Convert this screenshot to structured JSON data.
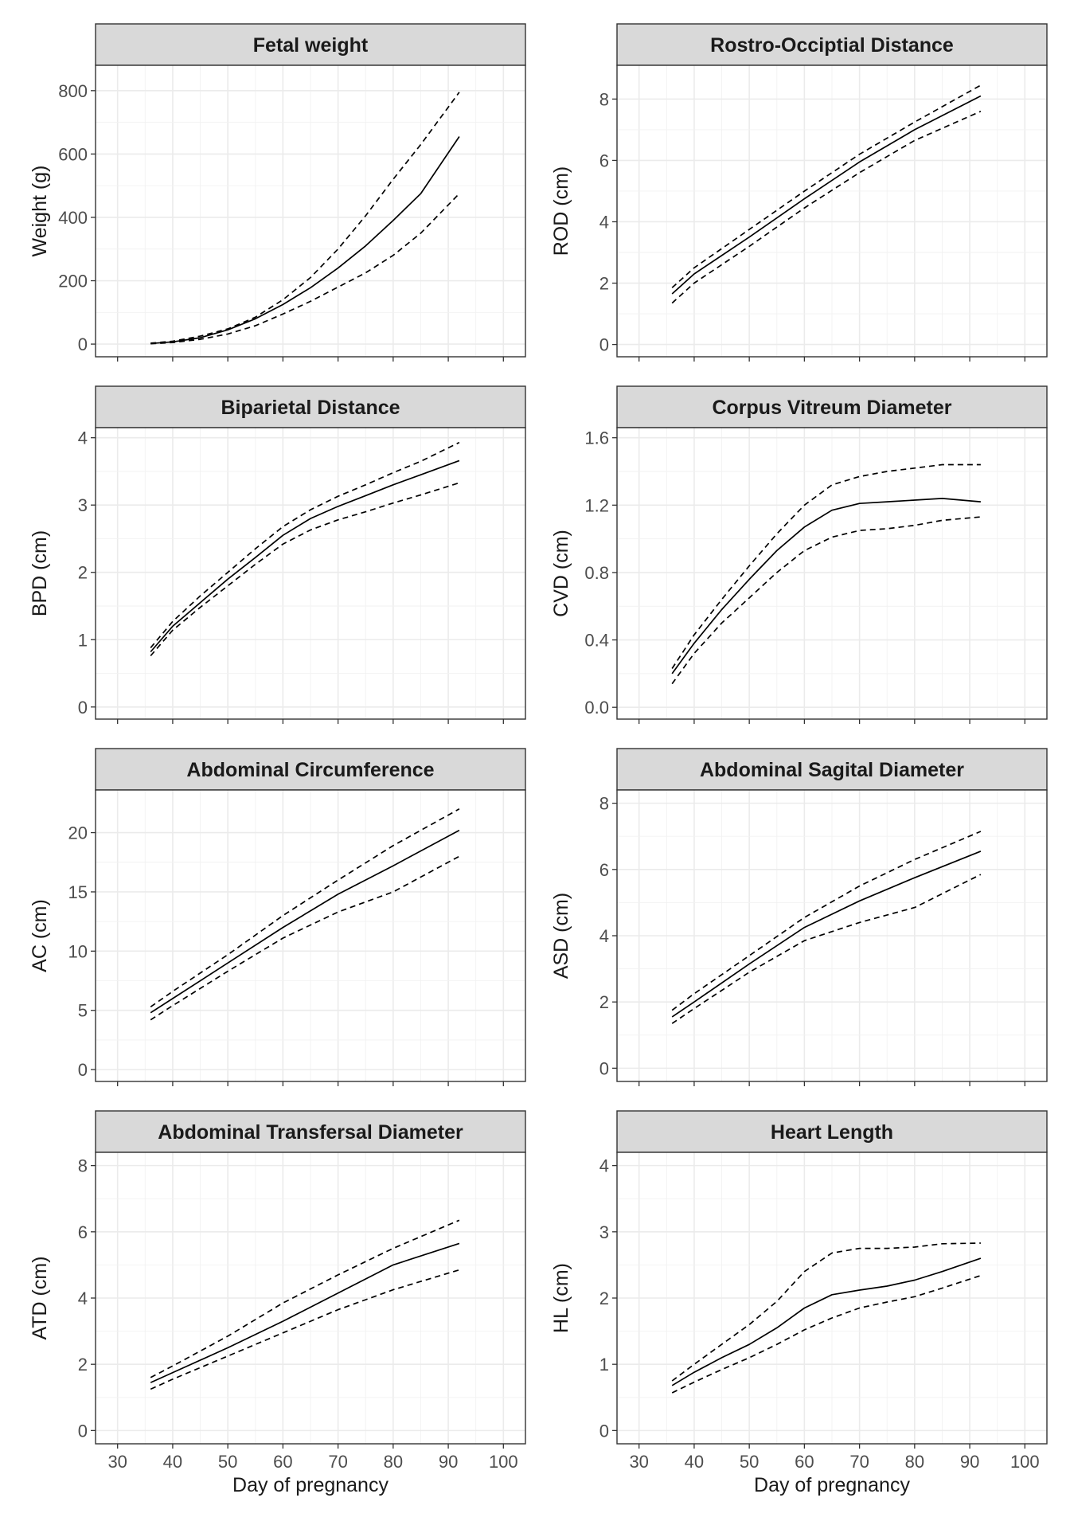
{
  "chart_data": [
    {
      "type": "line",
      "title": "Fetal weight",
      "ylabel": "Weight (g)",
      "xlabel": "",
      "xlim": [
        26,
        104
      ],
      "ylim": [
        -40,
        880
      ],
      "yticks": [
        0,
        200,
        400,
        600,
        800
      ],
      "xticks": [
        30,
        40,
        50,
        60,
        70,
        80,
        90,
        100
      ],
      "grid": true,
      "series": [
        {
          "style": "solid",
          "x": [
            36,
            40,
            45,
            50,
            55,
            60,
            65,
            70,
            75,
            80,
            85,
            92
          ],
          "y": [
            2,
            7,
            20,
            45,
            80,
            125,
            178,
            240,
            310,
            390,
            475,
            655
          ]
        },
        {
          "style": "dashed",
          "x": [
            36,
            40,
            45,
            50,
            55,
            60,
            65,
            70,
            75,
            80,
            85,
            92
          ],
          "y": [
            3,
            9,
            25,
            48,
            85,
            140,
            210,
            300,
            405,
            520,
            630,
            795
          ]
        },
        {
          "style": "dashed",
          "x": [
            36,
            40,
            45,
            50,
            55,
            60,
            65,
            70,
            75,
            80,
            85,
            92
          ],
          "y": [
            1,
            5,
            15,
            32,
            58,
            95,
            135,
            180,
            225,
            280,
            350,
            475
          ]
        }
      ]
    },
    {
      "type": "line",
      "title": "Rostro-Occiptial Distance",
      "ylabel": "ROD (cm)",
      "xlabel": "",
      "xlim": [
        26,
        104
      ],
      "ylim": [
        -0.4,
        9.1
      ],
      "yticks": [
        0,
        2,
        4,
        6,
        8
      ],
      "xticks": [
        30,
        40,
        50,
        60,
        70,
        80,
        90,
        100
      ],
      "grid": true,
      "series": [
        {
          "style": "solid",
          "x": [
            36,
            40,
            50,
            60,
            70,
            80,
            92
          ],
          "y": [
            1.65,
            2.3,
            3.5,
            4.75,
            5.95,
            7.0,
            8.1
          ]
        },
        {
          "style": "dashed",
          "x": [
            36,
            40,
            50,
            60,
            70,
            80,
            92
          ],
          "y": [
            1.85,
            2.5,
            3.75,
            5.0,
            6.2,
            7.25,
            8.45
          ]
        },
        {
          "style": "dashed",
          "x": [
            36,
            40,
            50,
            60,
            70,
            80,
            92
          ],
          "y": [
            1.35,
            2.0,
            3.2,
            4.45,
            5.6,
            6.65,
            7.6
          ]
        }
      ]
    },
    {
      "type": "line",
      "title": "Biparietal Distance",
      "ylabel": "BPD (cm)",
      "xlabel": "",
      "xlim": [
        26,
        104
      ],
      "ylim": [
        -0.18,
        4.15
      ],
      "yticks": [
        0,
        1,
        2,
        3,
        4
      ],
      "xticks": [
        30,
        40,
        50,
        60,
        70,
        80,
        90,
        100
      ],
      "grid": true,
      "series": [
        {
          "style": "solid",
          "x": [
            36,
            40,
            45,
            50,
            55,
            60,
            65,
            70,
            75,
            80,
            85,
            92
          ],
          "y": [
            0.82,
            1.2,
            1.55,
            1.9,
            2.22,
            2.55,
            2.8,
            2.98,
            3.14,
            3.3,
            3.45,
            3.66
          ]
        },
        {
          "style": "dashed",
          "x": [
            36,
            40,
            45,
            50,
            55,
            60,
            65,
            70,
            75,
            80,
            85,
            92
          ],
          "y": [
            0.88,
            1.27,
            1.65,
            2.0,
            2.35,
            2.68,
            2.93,
            3.13,
            3.3,
            3.48,
            3.65,
            3.93
          ]
        },
        {
          "style": "dashed",
          "x": [
            36,
            40,
            45,
            50,
            55,
            60,
            65,
            70,
            75,
            80,
            85,
            92
          ],
          "y": [
            0.76,
            1.14,
            1.48,
            1.8,
            2.12,
            2.42,
            2.63,
            2.78,
            2.9,
            3.03,
            3.15,
            3.33
          ]
        }
      ]
    },
    {
      "type": "line",
      "title": "Corpus Vitreum Diameter",
      "ylabel": "CVD (cm)",
      "xlabel": "",
      "xlim": [
        26,
        104
      ],
      "ylim": [
        -0.07,
        1.66
      ],
      "yticks": [
        0.0,
        0.4,
        0.8,
        1.2,
        1.6
      ],
      "ytick_labels": [
        "0.0",
        "0.4",
        "0.8",
        "1.2",
        "1.6"
      ],
      "xticks": [
        30,
        40,
        50,
        60,
        70,
        80,
        90,
        100
      ],
      "grid": true,
      "series": [
        {
          "style": "solid",
          "x": [
            36,
            40,
            45,
            50,
            55,
            60,
            65,
            70,
            75,
            80,
            85,
            92
          ],
          "y": [
            0.2,
            0.38,
            0.58,
            0.76,
            0.93,
            1.07,
            1.17,
            1.21,
            1.22,
            1.23,
            1.24,
            1.22
          ]
        },
        {
          "style": "dashed",
          "x": [
            36,
            40,
            45,
            50,
            55,
            60,
            65,
            70,
            75,
            80,
            85,
            92
          ],
          "y": [
            0.23,
            0.43,
            0.64,
            0.84,
            1.03,
            1.2,
            1.32,
            1.37,
            1.4,
            1.42,
            1.44,
            1.44
          ]
        },
        {
          "style": "dashed",
          "x": [
            36,
            40,
            45,
            50,
            55,
            60,
            65,
            70,
            75,
            80,
            85,
            92
          ],
          "y": [
            0.14,
            0.32,
            0.5,
            0.65,
            0.8,
            0.93,
            1.01,
            1.05,
            1.06,
            1.08,
            1.11,
            1.13
          ]
        }
      ]
    },
    {
      "type": "line",
      "title": "Abdominal Circumference",
      "ylabel": "AC (cm)",
      "xlabel": "",
      "xlim": [
        26,
        104
      ],
      "ylim": [
        -1,
        23.6
      ],
      "yticks": [
        0,
        5,
        10,
        15,
        20
      ],
      "xticks": [
        30,
        40,
        50,
        60,
        70,
        80,
        90,
        100
      ],
      "grid": true,
      "series": [
        {
          "style": "solid",
          "x": [
            36,
            40,
            50,
            60,
            70,
            80,
            92
          ],
          "y": [
            4.8,
            6.0,
            9.0,
            12.0,
            14.8,
            17.2,
            20.2
          ]
        },
        {
          "style": "dashed",
          "x": [
            36,
            40,
            50,
            60,
            70,
            80,
            92
          ],
          "y": [
            5.3,
            6.6,
            9.7,
            13.0,
            16.0,
            18.9,
            22.0
          ]
        },
        {
          "style": "dashed",
          "x": [
            36,
            40,
            50,
            60,
            70,
            80,
            92
          ],
          "y": [
            4.2,
            5.4,
            8.3,
            11.1,
            13.3,
            15.0,
            18.0
          ]
        }
      ]
    },
    {
      "type": "line",
      "title": "Abdominal Sagital Diameter",
      "ylabel": "ASD (cm)",
      "xlabel": "",
      "xlim": [
        26,
        104
      ],
      "ylim": [
        -0.4,
        8.4
      ],
      "yticks": [
        0,
        2,
        4,
        6,
        8
      ],
      "xticks": [
        30,
        40,
        50,
        60,
        70,
        80,
        90,
        100
      ],
      "grid": true,
      "series": [
        {
          "style": "solid",
          "x": [
            36,
            40,
            50,
            60,
            70,
            80,
            92
          ],
          "y": [
            1.55,
            2.0,
            3.15,
            4.25,
            5.05,
            5.75,
            6.55
          ]
        },
        {
          "style": "dashed",
          "x": [
            36,
            40,
            50,
            60,
            70,
            80,
            92
          ],
          "y": [
            1.75,
            2.25,
            3.4,
            4.55,
            5.5,
            6.3,
            7.15
          ]
        },
        {
          "style": "dashed",
          "x": [
            36,
            40,
            50,
            60,
            70,
            80,
            92
          ],
          "y": [
            1.35,
            1.8,
            2.9,
            3.85,
            4.4,
            4.85,
            5.85
          ]
        }
      ]
    },
    {
      "type": "line",
      "title": "Abdominal Transfersal Diameter",
      "ylabel": "ATD (cm)",
      "xlabel": "Day of pregnancy",
      "xlim": [
        26,
        104
      ],
      "ylim": [
        -0.4,
        8.4
      ],
      "yticks": [
        0,
        2,
        4,
        6,
        8
      ],
      "xticks": [
        30,
        40,
        50,
        60,
        70,
        80,
        90,
        100
      ],
      "grid": true,
      "series": [
        {
          "style": "solid",
          "x": [
            36,
            40,
            50,
            60,
            70,
            80,
            92
          ],
          "y": [
            1.45,
            1.75,
            2.5,
            3.3,
            4.15,
            5.0,
            5.65
          ]
        },
        {
          "style": "dashed",
          "x": [
            36,
            40,
            50,
            60,
            70,
            80,
            92
          ],
          "y": [
            1.6,
            1.95,
            2.85,
            3.85,
            4.7,
            5.5,
            6.35
          ]
        },
        {
          "style": "dashed",
          "x": [
            36,
            40,
            50,
            60,
            70,
            80,
            92
          ],
          "y": [
            1.25,
            1.55,
            2.25,
            2.95,
            3.65,
            4.25,
            4.85
          ]
        }
      ]
    },
    {
      "type": "line",
      "title": "Heart Length",
      "ylabel": "HL (cm)",
      "xlabel": "Day of pregnancy",
      "xlim": [
        26,
        104
      ],
      "ylim": [
        -0.2,
        4.2
      ],
      "yticks": [
        0,
        1,
        2,
        3,
        4
      ],
      "xticks": [
        30,
        40,
        50,
        60,
        70,
        80,
        90,
        100
      ],
      "grid": true,
      "series": [
        {
          "style": "solid",
          "x": [
            36,
            40,
            45,
            50,
            55,
            60,
            65,
            70,
            75,
            80,
            85,
            92
          ],
          "y": [
            0.68,
            0.88,
            1.1,
            1.3,
            1.55,
            1.85,
            2.05,
            2.12,
            2.18,
            2.27,
            2.4,
            2.6
          ]
        },
        {
          "style": "dashed",
          "x": [
            36,
            40,
            45,
            50,
            55,
            60,
            65,
            70,
            75,
            80,
            85,
            92
          ],
          "y": [
            0.75,
            1.0,
            1.3,
            1.6,
            1.95,
            2.4,
            2.68,
            2.75,
            2.75,
            2.77,
            2.82,
            2.83
          ]
        },
        {
          "style": "dashed",
          "x": [
            36,
            40,
            45,
            50,
            55,
            60,
            65,
            70,
            75,
            80,
            85,
            92
          ],
          "y": [
            0.57,
            0.73,
            0.92,
            1.1,
            1.3,
            1.52,
            1.7,
            1.85,
            1.94,
            2.02,
            2.15,
            2.34
          ]
        }
      ]
    }
  ]
}
